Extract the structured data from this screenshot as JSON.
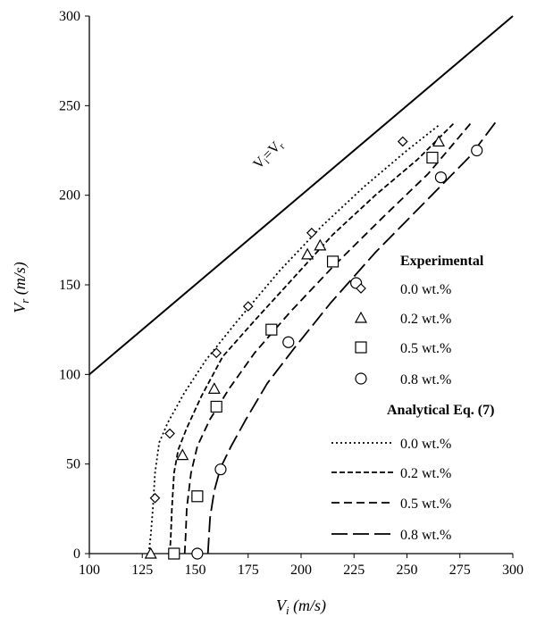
{
  "chart_data": {
    "type": "scatter",
    "xlabel": {
      "main": "V",
      "sub": "i",
      "unit": " (m/s)"
    },
    "ylabel": {
      "main": "V",
      "sub": "r",
      "unit": " (m/s)"
    },
    "xlim": [
      100,
      300
    ],
    "ylim": [
      0,
      300
    ],
    "xticks": [
      100,
      125,
      150,
      175,
      200,
      225,
      250,
      275,
      300
    ],
    "yticks": [
      0,
      50,
      100,
      150,
      200,
      250,
      300
    ],
    "grid": false,
    "legend_position": "right",
    "reference_line": {
      "label": {
        "a": "V",
        "a_sub": "i",
        "eq": "=V",
        "b_sub": "r"
      },
      "from": [
        100,
        100
      ],
      "to": [
        300,
        300
      ]
    },
    "experimental": {
      "heading": "Experimental",
      "series": [
        {
          "name": "0.0 wt.%",
          "marker": "diamond",
          "x": [
            131,
            138,
            160,
            175,
            205,
            248
          ],
          "y": [
            31,
            67,
            112,
            138,
            179,
            230
          ]
        },
        {
          "name": "0.2 wt.%",
          "marker": "triangle",
          "x": [
            129,
            144,
            159,
            203,
            209,
            265
          ],
          "y": [
            0,
            55,
            92,
            167,
            172,
            230
          ]
        },
        {
          "name": "0.5 wt.%",
          "marker": "square",
          "x": [
            140,
            151,
            160,
            186,
            215,
            262
          ],
          "y": [
            0,
            32,
            82,
            125,
            163,
            221
          ]
        },
        {
          "name": "0.8 wt.%",
          "marker": "circle",
          "x": [
            151,
            162,
            194,
            226,
            266,
            283
          ],
          "y": [
            0,
            47,
            118,
            151,
            210,
            225
          ]
        }
      ]
    },
    "analytical": {
      "heading": "Analytical Eq. (7)",
      "series": [
        {
          "name": "0.0 wt.%",
          "dash": "2,3",
          "x": [
            128,
            129,
            130,
            131,
            133,
            137,
            145,
            155,
            170,
            190,
            210,
            230,
            250,
            265
          ],
          "y": [
            0,
            10,
            25,
            45,
            62,
            73,
            90,
            108,
            130,
            158,
            183,
            205,
            225,
            239
          ]
        },
        {
          "name": "0.2 wt.%",
          "dash": "6,3",
          "x": [
            138,
            138.5,
            139,
            140,
            142,
            146,
            153,
            163,
            178,
            195,
            215,
            235,
            255,
            272
          ],
          "y": [
            0,
            10,
            25,
            45,
            58,
            70,
            88,
            110,
            130,
            152,
            178,
            200,
            220,
            240
          ]
        },
        {
          "name": "0.5 wt.%",
          "dash": "9,5",
          "x": [
            145,
            145.5,
            146,
            148,
            151,
            157,
            166,
            178,
            195,
            215,
            238,
            260,
            280
          ],
          "y": [
            0,
            10,
            25,
            45,
            60,
            75,
            92,
            112,
            135,
            160,
            187,
            212,
            240
          ]
        },
        {
          "name": "0.8 wt.%",
          "dash": "18,6",
          "x": [
            156,
            156.5,
            157,
            159,
            162,
            167,
            174,
            184,
            197,
            214,
            235,
            260,
            280,
            292
          ],
          "y": [
            0,
            10,
            20,
            35,
            48,
            60,
            75,
            95,
            115,
            140,
            168,
            198,
            222,
            241
          ]
        }
      ]
    }
  }
}
